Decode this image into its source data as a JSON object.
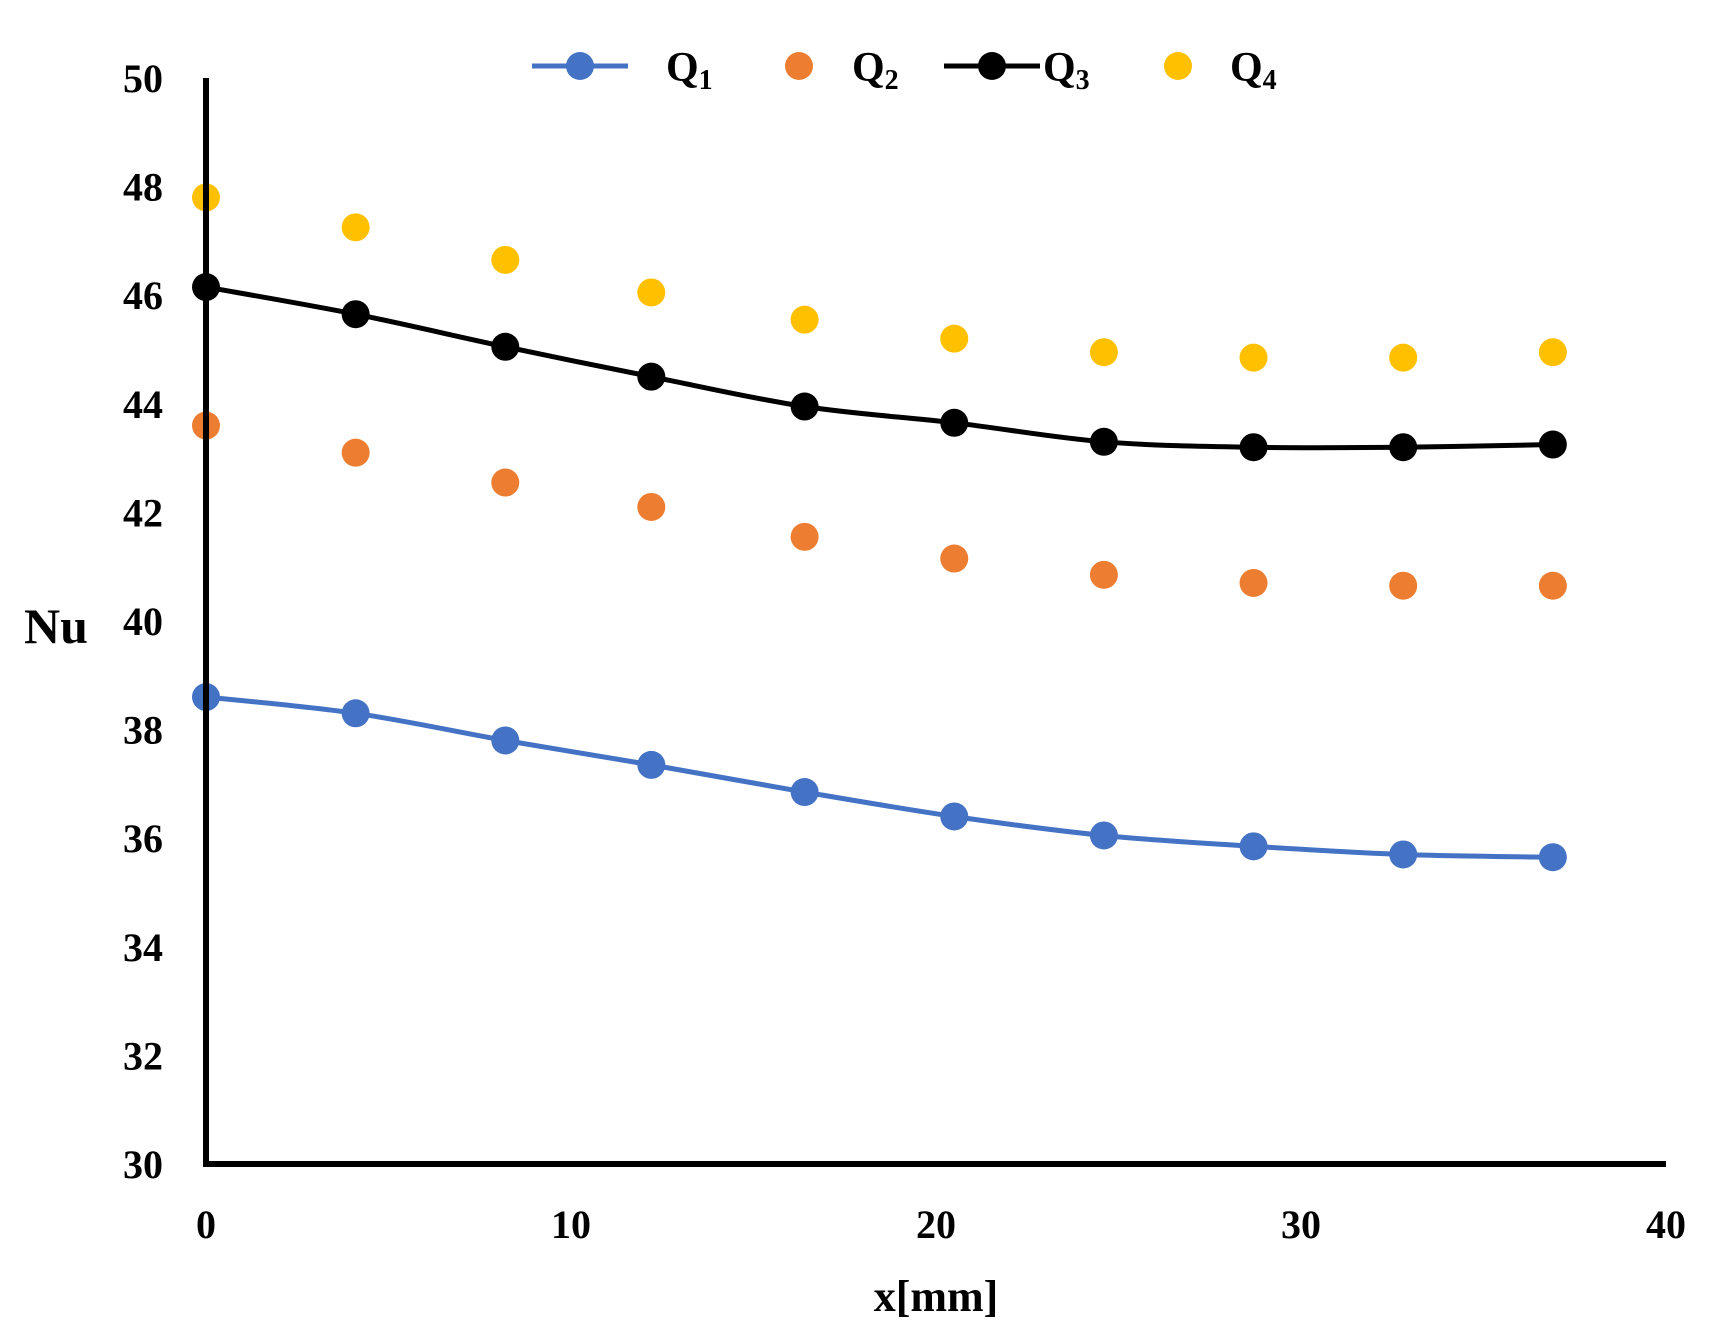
{
  "chart_data": {
    "type": "line",
    "title": "",
    "xlabel": "x[mm]",
    "ylabel": "Nu",
    "xlim": [
      0,
      40
    ],
    "ylim": [
      30,
      50
    ],
    "xticks": [
      0,
      10,
      20,
      30,
      40
    ],
    "yticks": [
      30,
      32,
      34,
      36,
      38,
      40,
      42,
      44,
      46,
      48,
      50
    ],
    "grid": false,
    "legend_position": "top",
    "x": [
      0,
      4.1,
      8.2,
      12.2,
      16.4,
      20.5,
      24.6,
      28.7,
      32.8,
      36.9
    ],
    "series": [
      {
        "name": "Q",
        "subscript": "1",
        "color": "#4472C4",
        "line": true,
        "values": [
          38.6,
          38.3,
          37.8,
          37.35,
          36.85,
          36.4,
          36.05,
          35.85,
          35.7,
          35.65
        ]
      },
      {
        "name": "Q",
        "subscript": "2",
        "color": "#ED7D31",
        "line": false,
        "values": [
          43.6,
          43.1,
          42.55,
          42.1,
          41.55,
          41.15,
          40.85,
          40.7,
          40.65,
          40.65
        ]
      },
      {
        "name": "Q",
        "subscript": "3",
        "color": "#000000",
        "line": true,
        "values": [
          46.15,
          45.65,
          45.05,
          44.5,
          43.95,
          43.65,
          43.3,
          43.2,
          43.2,
          43.25
        ]
      },
      {
        "name": "Q",
        "subscript": "4",
        "color": "#FFC000",
        "line": false,
        "values": [
          47.8,
          47.25,
          46.65,
          46.05,
          45.55,
          45.2,
          44.95,
          44.85,
          44.85,
          44.95
        ]
      }
    ]
  }
}
